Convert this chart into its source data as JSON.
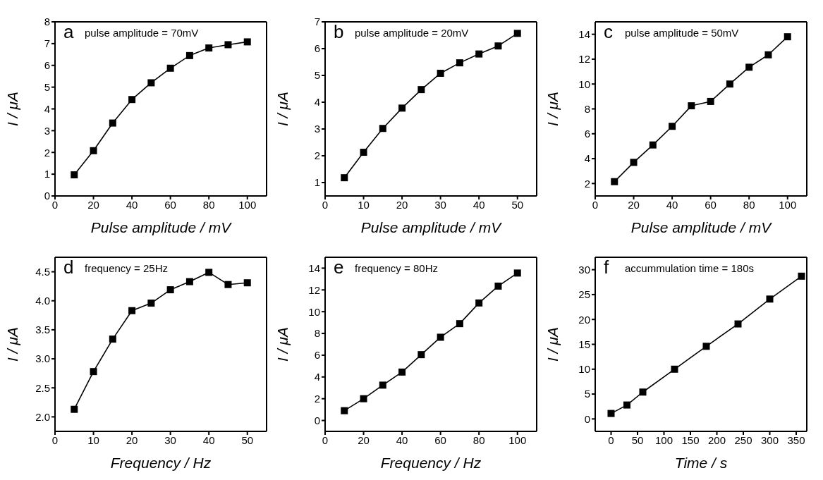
{
  "chart_data": [
    {
      "type": "line",
      "xlabel": "Pulse amplitude / mV",
      "ylabel": "I / μA",
      "annotations": [
        "a",
        "pulse amplitude = 70mV"
      ],
      "marker": "square",
      "line_style": "solid",
      "grid": false,
      "legend": false,
      "x": [
        10,
        20,
        30,
        40,
        50,
        60,
        70,
        80,
        90,
        100
      ],
      "xlim": [
        0,
        110
      ],
      "xticks": [
        0,
        20,
        40,
        60,
        80,
        100
      ],
      "ylim": [
        0,
        8
      ],
      "yticks": [
        0,
        1,
        2,
        3,
        4,
        5,
        6,
        7,
        8
      ],
      "series": [
        {
          "color": "#000000",
          "values": [
            0.97,
            2.08,
            3.35,
            4.43,
            5.2,
            5.87,
            6.45,
            6.8,
            6.95,
            7.08
          ]
        }
      ]
    },
    {
      "type": "line",
      "xlabel": "Pulse amplitude / mV",
      "ylabel": "I / μA",
      "annotations": [
        "b",
        "pulse amplitude = 20mV"
      ],
      "marker": "square",
      "line_style": "solid",
      "grid": false,
      "legend": false,
      "x": [
        5,
        10,
        15,
        20,
        25,
        30,
        35,
        40,
        45,
        50
      ],
      "xlim": [
        0,
        55
      ],
      "xticks": [
        0,
        10,
        20,
        30,
        40,
        50
      ],
      "ylim": [
        0.5,
        7
      ],
      "yticks": [
        1,
        2,
        3,
        4,
        5,
        6,
        7
      ],
      "series": [
        {
          "color": "#000000",
          "values": [
            1.18,
            2.13,
            3.02,
            3.78,
            4.47,
            5.08,
            5.47,
            5.8,
            6.1,
            6.57
          ]
        }
      ]
    },
    {
      "type": "line",
      "xlabel": "Pulse amplitude / mV",
      "ylabel": "I / μA",
      "annotations": [
        "c",
        "pulse amplitude = 50mV"
      ],
      "marker": "square",
      "line_style": "solid",
      "grid": false,
      "legend": false,
      "x": [
        10,
        20,
        30,
        40,
        50,
        60,
        70,
        80,
        90,
        100
      ],
      "xlim": [
        0,
        110
      ],
      "xticks": [
        0,
        20,
        40,
        60,
        80,
        100
      ],
      "ylim": [
        1,
        15
      ],
      "yticks": [
        2,
        4,
        6,
        8,
        10,
        12,
        14
      ],
      "series": [
        {
          "color": "#000000",
          "values": [
            2.15,
            3.7,
            5.1,
            6.6,
            8.25,
            8.6,
            10,
            11.35,
            12.35,
            13.8
          ]
        }
      ]
    },
    {
      "type": "line",
      "xlabel": "Frequency / Hz",
      "ylabel": "I / μA",
      "annotations": [
        "d",
        "frequency = 25Hz"
      ],
      "marker": "square",
      "line_style": "solid",
      "grid": false,
      "legend": false,
      "x": [
        5,
        10,
        15,
        20,
        25,
        30,
        35,
        40,
        45,
        50
      ],
      "xlim": [
        0,
        55
      ],
      "xticks": [
        0,
        10,
        20,
        30,
        40,
        50
      ],
      "ylim": [
        1.75,
        4.75
      ],
      "yticks": [
        {
          "value": 2,
          "label": "2.0"
        },
        2.5,
        {
          "value": 3,
          "label": "3.0"
        },
        3.5,
        {
          "value": 4,
          "label": "4.0"
        },
        4.5
      ],
      "series": [
        {
          "color": "#000000",
          "values": [
            2.13,
            2.78,
            3.34,
            3.83,
            3.96,
            4.19,
            4.33,
            4.49,
            4.28,
            4.31
          ]
        }
      ]
    },
    {
      "type": "line",
      "xlabel": "Frequency / Hz",
      "ylabel": "I / μA",
      "annotations": [
        "e",
        "frequency = 80Hz"
      ],
      "marker": "square",
      "line_style": "solid",
      "grid": false,
      "legend": false,
      "x": [
        10,
        20,
        30,
        40,
        50,
        60,
        70,
        80,
        90,
        100
      ],
      "xlim": [
        0,
        110
      ],
      "xticks": [
        0,
        20,
        40,
        60,
        80,
        100
      ],
      "ylim": [
        -1,
        15
      ],
      "yticks": [
        0,
        2,
        4,
        6,
        8,
        10,
        12,
        14
      ],
      "series": [
        {
          "color": "#000000",
          "values": [
            0.9,
            2.0,
            3.25,
            4.45,
            6.05,
            7.65,
            8.9,
            10.8,
            12.35,
            13.55
          ]
        }
      ]
    },
    {
      "type": "line",
      "xlabel": "Time / s",
      "ylabel": "I / μA",
      "annotations": [
        "f",
        "accummulation time = 180s"
      ],
      "marker": "square",
      "line_style": "solid",
      "grid": false,
      "legend": false,
      "x": [
        0,
        30,
        60,
        120,
        180,
        240,
        300,
        360
      ],
      "xlim": [
        -30,
        370
      ],
      "xticks": [
        0,
        50,
        100,
        150,
        200,
        250,
        300,
        350
      ],
      "ylim": [
        -2.5,
        32.5
      ],
      "yticks": [
        0,
        5,
        10,
        15,
        20,
        25,
        30
      ],
      "series": [
        {
          "color": "#000000",
          "values": [
            1.1,
            2.8,
            5.4,
            10,
            14.6,
            19.1,
            24.1,
            28.7
          ]
        }
      ]
    }
  ]
}
